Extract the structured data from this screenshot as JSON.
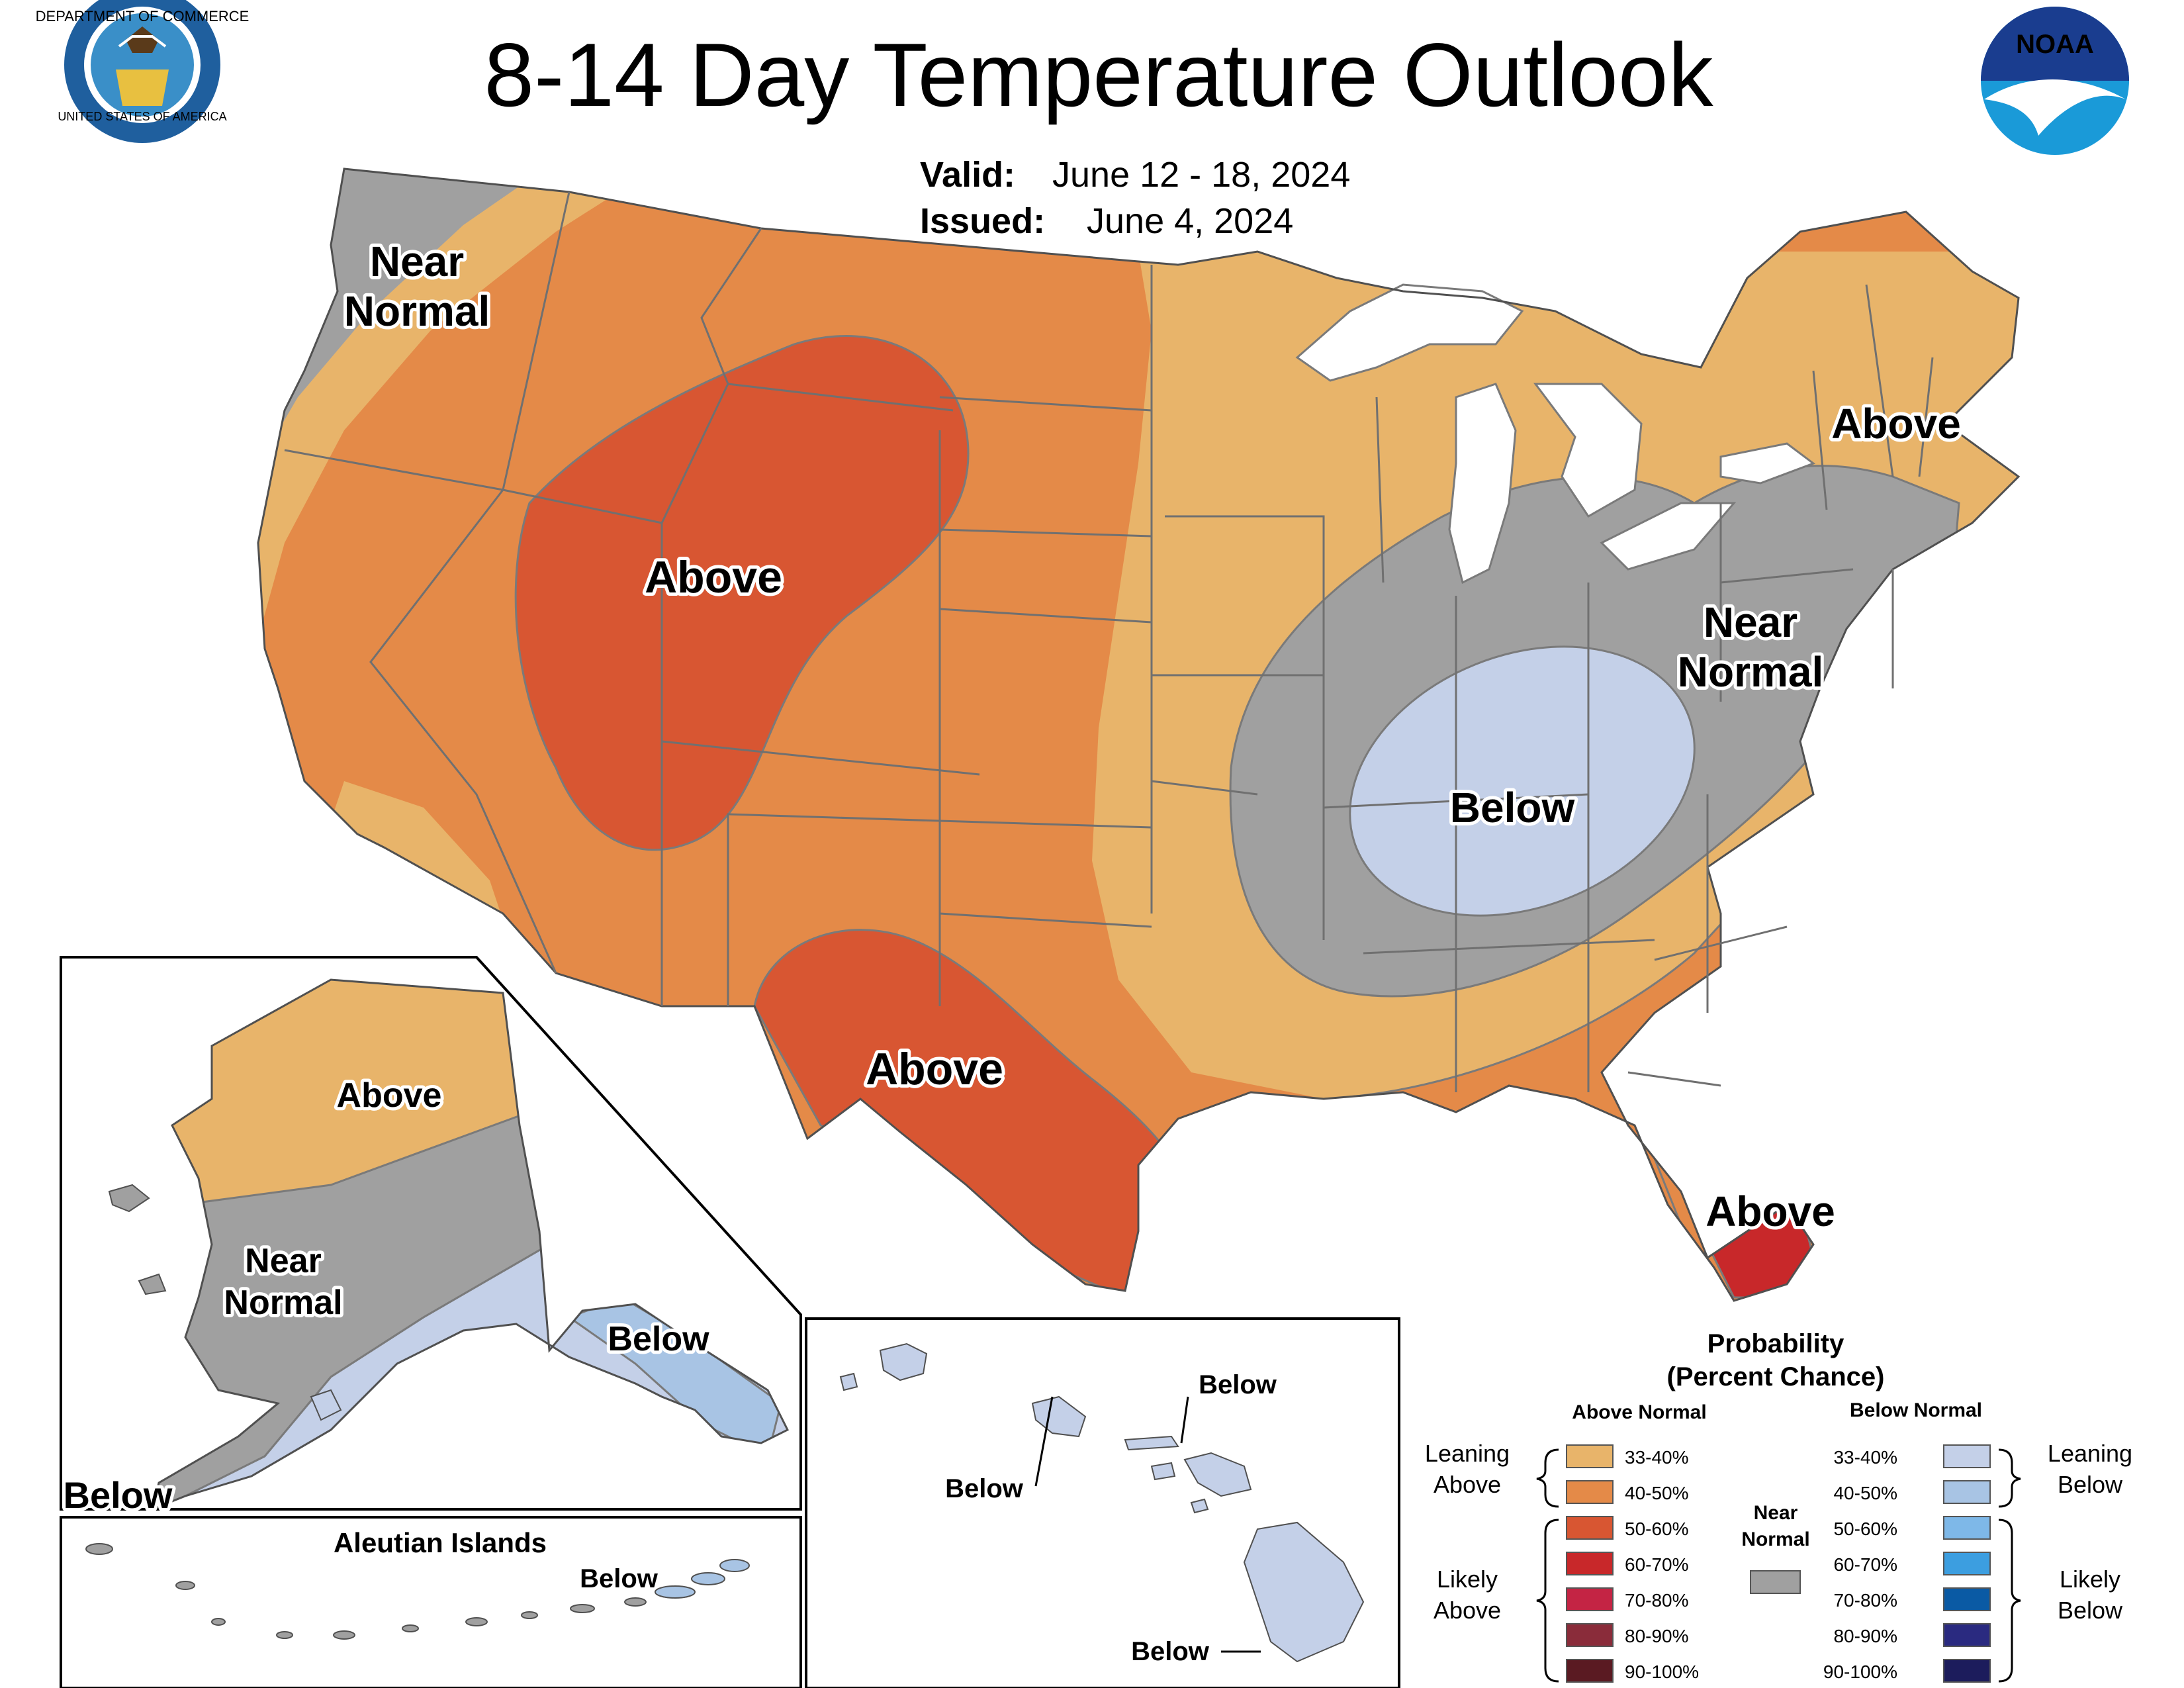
{
  "header": {
    "title": "8-14 Day Temperature Outlook",
    "valid_label": "Valid:",
    "valid_value": "June 12 - 18, 2024",
    "issued_label": "Issued:",
    "issued_value": "June 4, 2024"
  },
  "logos": {
    "left": {
      "ring_text": "DEPARTMENT OF COMMERCE",
      "ring_text_bottom": "UNITED STATES OF AMERICA"
    },
    "right": {
      "text": "NOAA"
    }
  },
  "colors": {
    "above_33_40": "#e8b46a",
    "above_40_50": "#e48a48",
    "above_50_60": "#d85632",
    "above_60_70": "#c8282a",
    "above_70_80": "#c42444",
    "above_80_90": "#8a2c3a",
    "above_90_100": "#5a1a22",
    "near_normal": "#a0a0a0",
    "below_33_40": "#c4d0e8",
    "below_40_50": "#a8c4e4",
    "below_50_60": "#7eb8e8",
    "below_60_70": "#3c9ee0",
    "below_70_80": "#0a5aa4",
    "below_80_90": "#2a2a80",
    "below_90_100": "#1c1c5c"
  },
  "map_labels": {
    "conus": {
      "nw_near_normal": [
        "Near",
        "Normal"
      ],
      "rockies_above": "Above",
      "texas_above": "Above",
      "northeast_above": "Above",
      "east_near_normal": [
        "Near",
        "Normal"
      ],
      "ohio_valley_below": "Below",
      "florida_above": "Above"
    },
    "alaska": {
      "north_above": "Above",
      "central_near_normal": [
        "Near",
        "Normal"
      ],
      "southeast_below": "Below",
      "southwest_below": "Below"
    },
    "aleutians": {
      "title": "Aleutian Islands",
      "below": "Below"
    },
    "hawaii": {
      "maui_below": "Below",
      "oahu_below": "Below",
      "big_island_below": "Below"
    }
  },
  "legend": {
    "title_line1": "Probability",
    "title_line2": "(Percent Chance)",
    "above_header": "Above Normal",
    "below_header": "Below Normal",
    "near_normal": [
      "Near",
      "Normal"
    ],
    "leaning_above": [
      "Leaning",
      "Above"
    ],
    "likely_above": [
      "Likely",
      "Above"
    ],
    "leaning_below": [
      "Leaning",
      "Below"
    ],
    "likely_below": [
      "Likely",
      "Below"
    ],
    "ranges": [
      "33-40%",
      "40-50%",
      "50-60%",
      "60-70%",
      "70-80%",
      "80-90%",
      "90-100%"
    ]
  }
}
